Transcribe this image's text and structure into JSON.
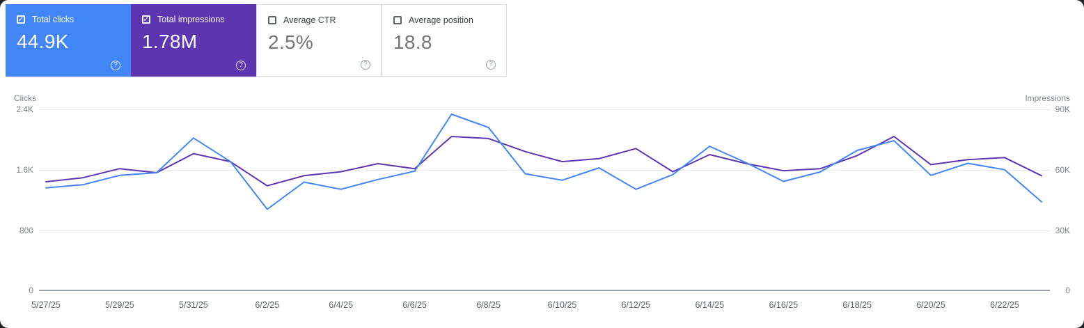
{
  "icons": {
    "help": "?",
    "check": "✓"
  },
  "cards": [
    {
      "label": "Total clicks",
      "value": "44.9K",
      "checked": true,
      "color": "#4285f4"
    },
    {
      "label": "Total impressions",
      "value": "1.78M",
      "checked": true,
      "color": "#5e35b1"
    },
    {
      "label": "Average CTR",
      "value": "2.5%",
      "checked": false
    },
    {
      "label": "Average position",
      "value": "18.8",
      "checked": false
    }
  ],
  "chart_data": {
    "type": "line",
    "grid": "horizontal",
    "left_axis": {
      "label": "Clicks",
      "ticks": [
        "2.4K",
        "1.6K",
        "800",
        "0"
      ],
      "max": 2400
    },
    "right_axis": {
      "label": "Impressions",
      "ticks": [
        "90K",
        "60K",
        "30K",
        "0"
      ],
      "max": 90000
    },
    "dates": [
      "5/27/25",
      "5/28/25",
      "5/29/25",
      "5/30/25",
      "5/31/25",
      "6/1/25",
      "6/2/25",
      "6/3/25",
      "6/4/25",
      "6/5/25",
      "6/6/25",
      "6/7/25",
      "6/8/25",
      "6/9/25",
      "6/10/25",
      "6/11/25",
      "6/12/25",
      "6/13/25",
      "6/14/25",
      "6/15/25",
      "6/16/25",
      "6/17/25",
      "6/18/25",
      "6/19/25",
      "6/20/25",
      "6/21/25",
      "6/22/25",
      "6/23/25"
    ],
    "x_tick_labels": [
      "5/27/25",
      "5/29/25",
      "5/31/25",
      "6/2/25",
      "6/4/25",
      "6/6/25",
      "6/8/25",
      "6/10/25",
      "6/12/25",
      "6/14/25",
      "6/16/25",
      "6/18/25",
      "6/20/25",
      "6/22/25"
    ],
    "series": [
      {
        "name": "Total clicks",
        "axis": "left",
        "color": "#4285f4",
        "values": [
          1360,
          1400,
          1525,
          1560,
          2020,
          1710,
          1075,
          1435,
          1340,
          1470,
          1580,
          2335,
          2160,
          1545,
          1460,
          1625,
          1340,
          1535,
          1910,
          1690,
          1445,
          1570,
          1855,
          1985,
          1525,
          1685,
          1600,
          1175
        ]
      },
      {
        "name": "Total impressions",
        "axis": "right",
        "color": "#5e35b1",
        "values": [
          54000,
          56000,
          60500,
          58500,
          68000,
          64000,
          52000,
          57000,
          59000,
          63000,
          60500,
          76500,
          75500,
          69000,
          64000,
          65500,
          70500,
          59000,
          67500,
          63000,
          59500,
          60500,
          67000,
          76500,
          62500,
          65000,
          66000,
          57000
        ]
      }
    ]
  }
}
